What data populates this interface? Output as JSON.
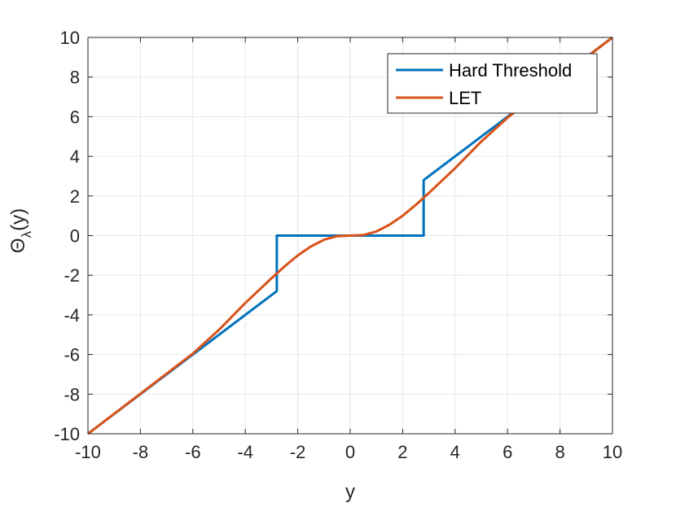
{
  "chart_data": {
    "type": "line",
    "title": "",
    "xlabel": "y",
    "ylabel": {
      "main": "Θ",
      "subscript": "λ",
      "suffix": "(y)"
    },
    "xlim": [
      -10,
      10
    ],
    "ylim": [
      -10,
      10
    ],
    "xticks": [
      -10,
      -8,
      -6,
      -4,
      -2,
      0,
      2,
      4,
      6,
      8,
      10
    ],
    "yticks": [
      -10,
      -8,
      -6,
      -4,
      -2,
      0,
      2,
      4,
      6,
      8,
      10
    ],
    "xtick_labels": [
      "-10",
      "-8",
      "-6",
      "-4",
      "-2",
      "0",
      "2",
      "4",
      "6",
      "8",
      "10"
    ],
    "ytick_labels": [
      "-10",
      "-8",
      "-6",
      "-4",
      "-2",
      "0",
      "2",
      "4",
      "6",
      "8",
      "10"
    ],
    "grid": true,
    "legend_position": "top-right",
    "series": [
      {
        "name": "Hard Threshold",
        "color": "#0072BD",
        "x": [
          -10,
          -2.8,
          -2.8,
          2.8,
          2.8,
          10
        ],
        "y": [
          -10,
          -2.8,
          0,
          0,
          2.8,
          10
        ]
      },
      {
        "name": "LET",
        "color": "#D95319",
        "x": [
          -10,
          -8,
          -6,
          -5,
          -4,
          -3,
          -2.5,
          -2,
          -1.5,
          -1,
          -0.5,
          0,
          0.5,
          1,
          1.5,
          2,
          2.5,
          3,
          4,
          5,
          6,
          8,
          10
        ],
        "y": [
          -10,
          -7.98,
          -5.95,
          -4.75,
          -3.4,
          -2.15,
          -1.55,
          -1.0,
          -0.55,
          -0.21,
          -0.03,
          0,
          0.03,
          0.21,
          0.55,
          1.0,
          1.55,
          2.15,
          3.4,
          4.75,
          5.95,
          7.98,
          10
        ]
      }
    ]
  }
}
